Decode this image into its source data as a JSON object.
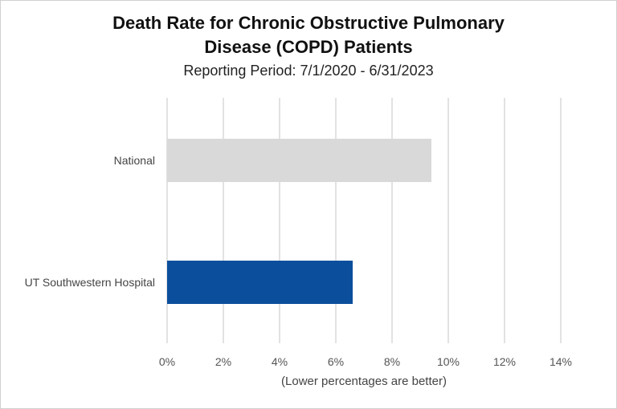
{
  "chart_data": {
    "type": "bar",
    "orientation": "horizontal",
    "title_lines": [
      "Death Rate for Chronic Obstructive Pulmonary",
      "Disease (COPD) Patients"
    ],
    "subtitle": "Reporting Period: 7/1/2020 - 6/31/2023",
    "xlabel": "(Lower percentages are better)",
    "categories": [
      "National",
      "UT Southwestern Hospital"
    ],
    "values": [
      9.4,
      6.6
    ],
    "colors": [
      "#d9d9d9",
      "#0b4f9c"
    ],
    "xlim": [
      0,
      14
    ],
    "ticks": [
      0,
      2,
      4,
      6,
      8,
      10,
      12,
      14
    ],
    "tick_labels": [
      "0%",
      "2%",
      "4%",
      "6%",
      "8%",
      "10%",
      "12%",
      "14%"
    ],
    "grid": true
  }
}
